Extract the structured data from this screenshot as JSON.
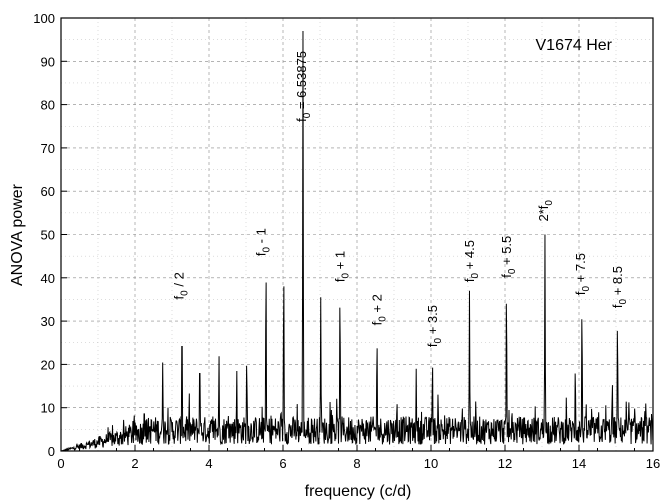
{
  "chart_data": {
    "type": "line",
    "title": "V1674 Her",
    "xlabel": "frequency (c/d)",
    "ylabel": "ANOVA power",
    "xlim": [
      0,
      16
    ],
    "ylim": [
      0,
      100
    ],
    "x_ticks": [
      0,
      2,
      4,
      6,
      8,
      10,
      12,
      14,
      16
    ],
    "y_ticks": [
      0,
      10,
      20,
      30,
      40,
      50,
      60,
      70,
      80,
      90,
      100
    ],
    "grid": true,
    "peaks": [
      {
        "x": 2.25,
        "y": 11
      },
      {
        "x": 2.75,
        "y": 21
      },
      {
        "x": 3.27,
        "y": 31
      },
      {
        "x": 3.75,
        "y": 23
      },
      {
        "x": 4.27,
        "y": 22.5
      },
      {
        "x": 4.75,
        "y": 19
      },
      {
        "x": 5.02,
        "y": 22
      },
      {
        "x": 5.54,
        "y": 43.5
      },
      {
        "x": 6.02,
        "y": 42.5
      },
      {
        "x": 6.54,
        "y": 97
      },
      {
        "x": 7.02,
        "y": 35.5
      },
      {
        "x": 7.54,
        "y": 37
      },
      {
        "x": 8.54,
        "y": 26.5
      },
      {
        "x": 9.6,
        "y": 19
      },
      {
        "x": 10.04,
        "y": 21.5
      },
      {
        "x": 11.04,
        "y": 37
      },
      {
        "x": 12.04,
        "y": 38
      },
      {
        "x": 13.08,
        "y": 50
      },
      {
        "x": 13.9,
        "y": 20
      },
      {
        "x": 14.08,
        "y": 34
      },
      {
        "x": 14.9,
        "y": 17
      },
      {
        "x": 15.04,
        "y": 31
      }
    ],
    "annotations": [
      {
        "main": "f",
        "sub": "0",
        "rest": " / 2",
        "x": 3.2,
        "y": 35
      },
      {
        "main": "f",
        "sub": "0",
        "rest": " - 1",
        "x": 5.42,
        "y": 45
      },
      {
        "main": "f",
        "sub": "0",
        "rest": " = 6.53875",
        "x": 6.52,
        "y": 76
      },
      {
        "main": "f",
        "sub": "0",
        "rest": " + 1",
        "x": 7.55,
        "y": 39
      },
      {
        "main": "f",
        "sub": "0",
        "rest": " + 2",
        "x": 8.55,
        "y": 29
      },
      {
        "main": "f",
        "sub": "0",
        "rest": " + 3.5",
        "x": 10.05,
        "y": 24
      },
      {
        "main": "f",
        "sub": "0",
        "rest": " + 4.5",
        "x": 11.05,
        "y": 39
      },
      {
        "main": "f",
        "sub": "0",
        "rest": " + 5.5",
        "x": 12.05,
        "y": 40
      },
      {
        "main": "2*f",
        "sub": "0",
        "rest": "",
        "x": 13.05,
        "y": 53
      },
      {
        "main": "f",
        "sub": "0",
        "rest": " + 7.5",
        "x": 14.05,
        "y": 36
      },
      {
        "main": "f",
        "sub": "0",
        "rest": " + 8.5",
        "x": 15.05,
        "y": 33
      }
    ],
    "legend": "top-right",
    "colors": {
      "line": "#000000",
      "background": "#ffffff"
    }
  }
}
